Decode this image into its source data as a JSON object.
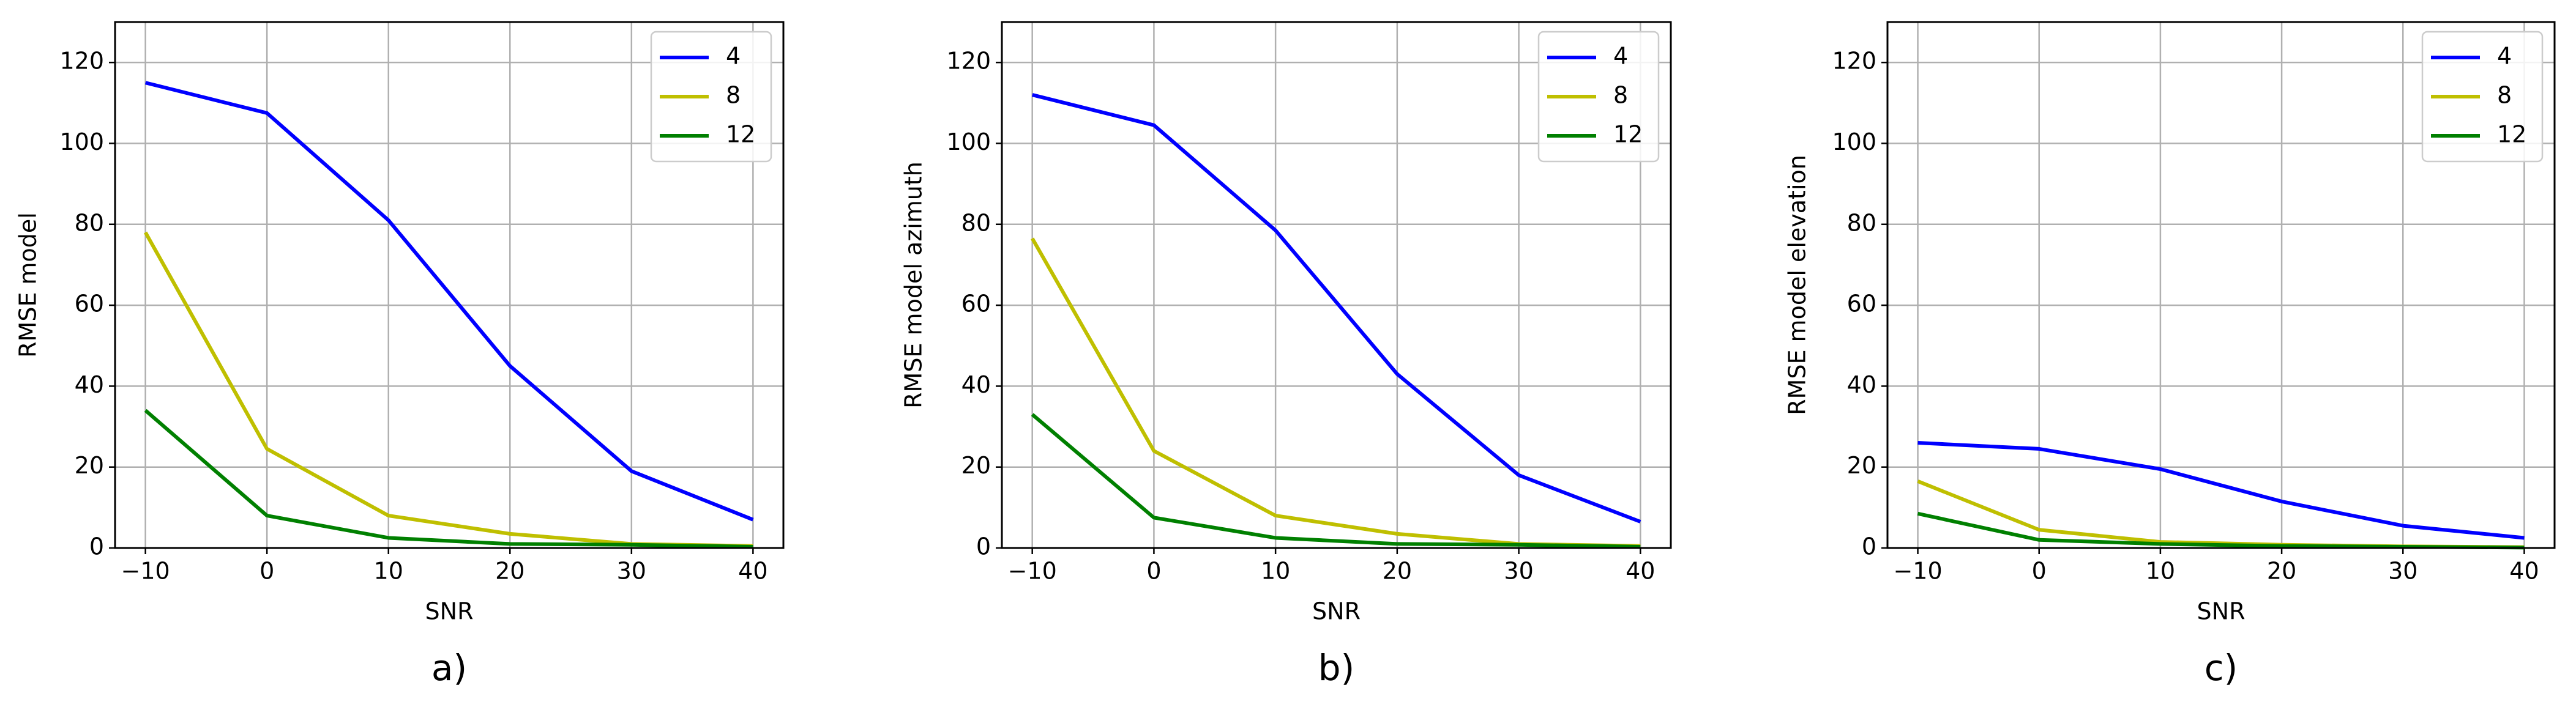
{
  "chart_data": [
    {
      "type": "line",
      "caption": "a)",
      "xlabel": "SNR",
      "ylabel": "RMSE model",
      "x": [
        -10,
        0,
        10,
        20,
        30,
        40
      ],
      "xlim": [
        -12.5,
        42.5
      ],
      "xticks": [
        {
          "value": -10,
          "label": "−10"
        },
        0,
        10,
        20,
        30,
        40
      ],
      "ylim": [
        0,
        130
      ],
      "yticks": [
        0,
        20,
        40,
        60,
        80,
        100,
        120
      ],
      "grid": true,
      "legend_loc": "upper right",
      "series": [
        {
          "name": "4",
          "color": "#0000ff",
          "values": [
            115,
            107.5,
            81,
            45,
            19,
            7
          ]
        },
        {
          "name": "8",
          "color": "#bfbf00",
          "values": [
            78,
            24.5,
            8,
            3.5,
            1,
            0.5
          ]
        },
        {
          "name": "12",
          "color": "#008000",
          "values": [
            34,
            8,
            2.5,
            1,
            0.8,
            0.3
          ]
        }
      ]
    },
    {
      "type": "line",
      "caption": "b)",
      "xlabel": "SNR",
      "ylabel": "RMSE model azimuth",
      "x": [
        -10,
        0,
        10,
        20,
        30,
        40
      ],
      "xlim": [
        -12.5,
        42.5
      ],
      "xticks": [
        {
          "value": -10,
          "label": "−10"
        },
        0,
        10,
        20,
        30,
        40
      ],
      "ylim": [
        0,
        130
      ],
      "yticks": [
        0,
        20,
        40,
        60,
        80,
        100,
        120
      ],
      "grid": true,
      "legend_loc": "upper right",
      "series": [
        {
          "name": "4",
          "color": "#0000ff",
          "values": [
            112,
            104.5,
            78.5,
            43,
            18,
            6.5
          ]
        },
        {
          "name": "8",
          "color": "#bfbf00",
          "values": [
            76.5,
            24,
            8,
            3.5,
            1,
            0.5
          ]
        },
        {
          "name": "12",
          "color": "#008000",
          "values": [
            33,
            7.5,
            2.5,
            1,
            0.8,
            0.3
          ]
        }
      ]
    },
    {
      "type": "line",
      "caption": "c)",
      "xlabel": "SNR",
      "ylabel": "RMSE model elevation",
      "x": [
        -10,
        0,
        10,
        20,
        30,
        40
      ],
      "xlim": [
        -12.5,
        42.5
      ],
      "xticks": [
        {
          "value": -10,
          "label": "−10"
        },
        0,
        10,
        20,
        30,
        40
      ],
      "ylim": [
        0,
        130
      ],
      "yticks": [
        0,
        20,
        40,
        60,
        80,
        100,
        120
      ],
      "grid": true,
      "legend_loc": "upper right",
      "series": [
        {
          "name": "4",
          "color": "#0000ff",
          "values": [
            26,
            24.5,
            19.5,
            11.5,
            5.5,
            2.5
          ]
        },
        {
          "name": "8",
          "color": "#bfbf00",
          "values": [
            16.5,
            4.5,
            1.5,
            0.8,
            0.4,
            0.2
          ]
        },
        {
          "name": "12",
          "color": "#008000",
          "values": [
            8.5,
            2,
            1,
            0.5,
            0.3,
            0.1
          ]
        }
      ]
    }
  ]
}
